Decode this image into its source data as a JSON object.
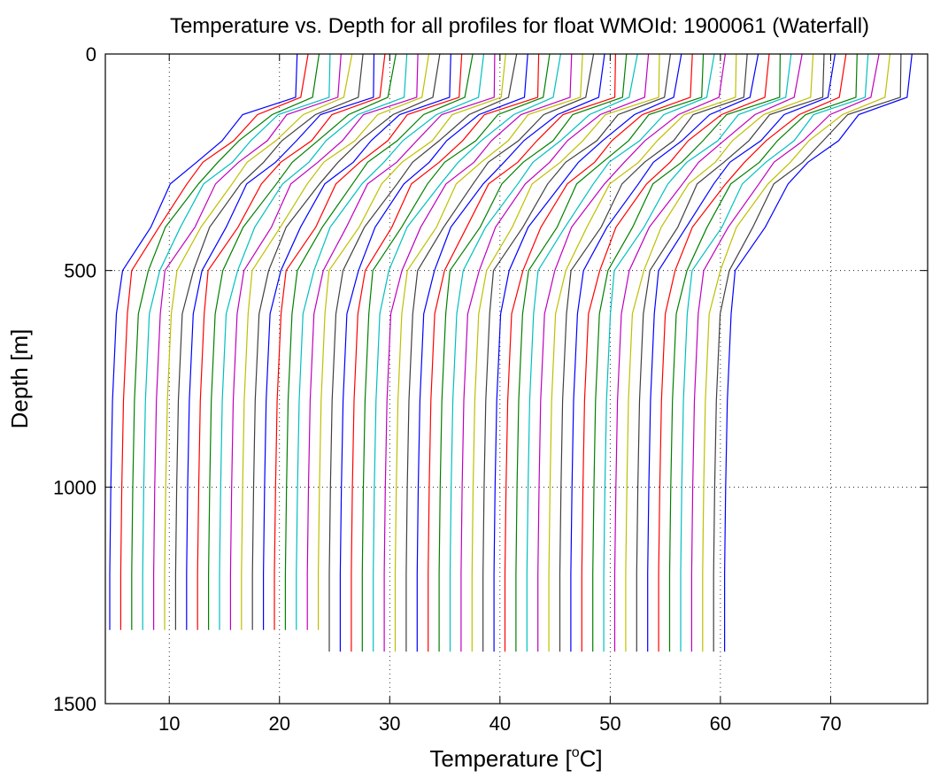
{
  "chart_data": {
    "type": "line",
    "title": "Temperature vs. Depth for all profiles for float WMOId: 1900061 (Waterfall)",
    "xlabel_prefix": "Temperature [",
    "xlabel_sup": "o",
    "xlabel_suffix": "C]",
    "ylabel": "Depth [m]",
    "xlim": [
      4.2,
      78.8
    ],
    "ylim": [
      0,
      1500
    ],
    "y_reversed": true,
    "xticks": [
      10,
      20,
      30,
      40,
      50,
      60,
      70
    ],
    "yticks": [
      0,
      500,
      1000,
      1500
    ],
    "grid": true,
    "colors": [
      "#0000ff",
      "#ff0000",
      "#008000",
      "#00bfbf",
      "#bf00bf",
      "#bfbf00",
      "#404040"
    ],
    "profiles": {
      "count": 57,
      "description": "Waterfall: each profile offset horizontally by about 1 degree C",
      "depths": [
        0,
        100,
        140,
        200,
        250,
        300,
        400,
        500,
        600,
        800,
        1000,
        1200
      ],
      "first_profile_surface_T": 21.6,
      "first_profile_bottom_T": 4.6,
      "step": 0.996,
      "group_a_bottom_depth": 1330,
      "group_b_bottom_depth": 1380,
      "group_a_count": 20
    }
  }
}
